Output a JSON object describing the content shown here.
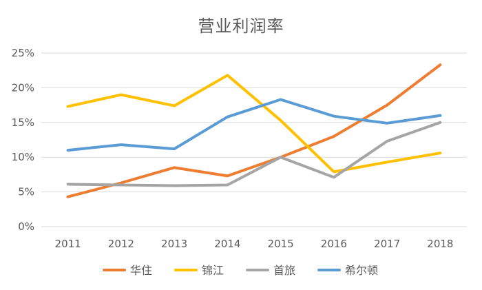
{
  "chart_data": {
    "type": "line",
    "title": "营业利润率",
    "xlabel": "",
    "ylabel": "",
    "categories": [
      "2011",
      "2012",
      "2013",
      "2014",
      "2015",
      "2016",
      "2017",
      "2018"
    ],
    "y_ticks": [
      "0%",
      "5%",
      "10%",
      "15%",
      "20%",
      "25%"
    ],
    "ylim": [
      0,
      25
    ],
    "grid": true,
    "legend_position": "bottom",
    "series": [
      {
        "name": "华住",
        "color": "#ED7D31",
        "values": [
          4.3,
          6.3,
          8.5,
          7.3,
          10.0,
          13.0,
          17.5,
          23.3
        ]
      },
      {
        "name": "锦江",
        "color": "#FFC000",
        "values": [
          17.3,
          19.0,
          17.4,
          21.8,
          15.3,
          7.9,
          9.3,
          10.6
        ]
      },
      {
        "name": "首旅",
        "color": "#A5A5A5",
        "values": [
          6.1,
          6.0,
          5.9,
          6.0,
          10.0,
          7.1,
          12.3,
          15.0
        ]
      },
      {
        "name": "希尔顿",
        "color": "#5B9BD5",
        "values": [
          11.0,
          11.8,
          11.2,
          15.8,
          18.3,
          15.9,
          14.9,
          16.0
        ]
      }
    ]
  }
}
